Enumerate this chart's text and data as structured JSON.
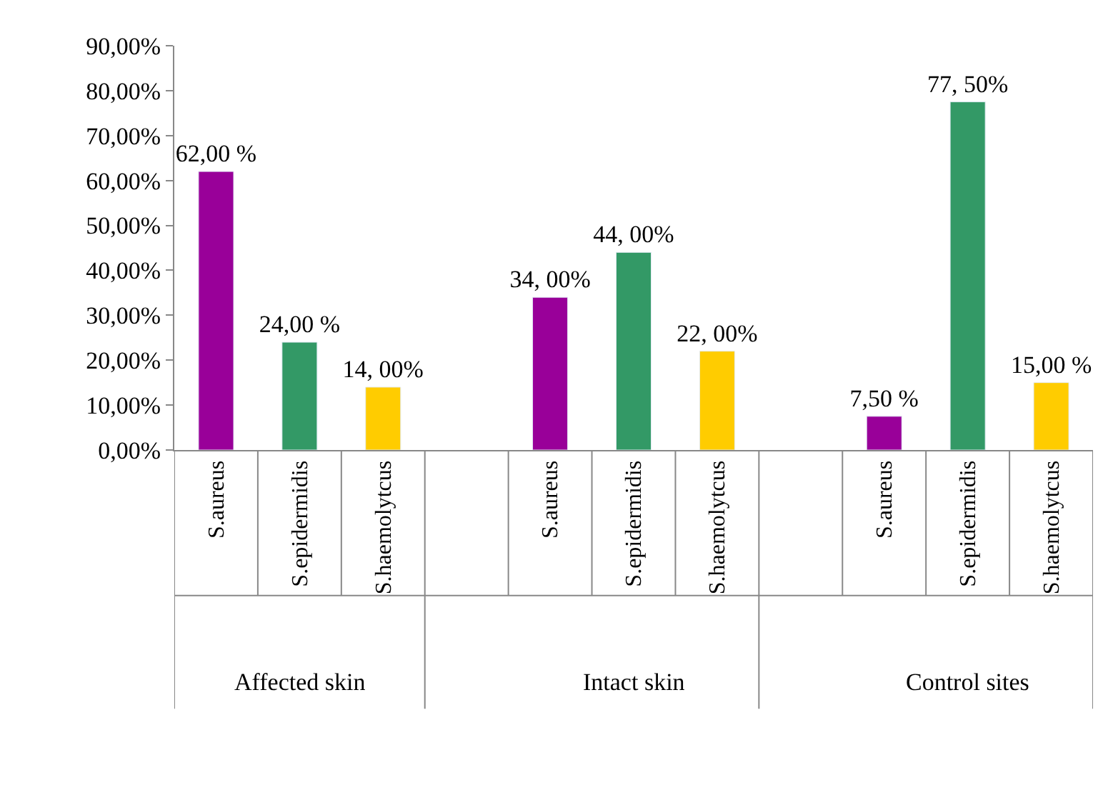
{
  "chart_data": {
    "type": "bar",
    "categories": [
      "S.aureus",
      "S.epidermidis",
      "S.haemolytcus",
      null,
      "S.aureus",
      "S.epidermidis",
      "S.haemolytcus",
      null,
      "S.aureus",
      "S.epidermidis",
      "S.haemolytcus"
    ],
    "values": [
      62,
      24,
      14,
      null,
      34,
      44,
      22,
      null,
      7.5,
      77.5,
      15
    ],
    "colors": [
      "#990099",
      "#339966",
      "#ffcc00",
      null,
      "#990099",
      "#339966",
      "#ffcc00",
      null,
      "#990099",
      "#339966",
      "#ffcc00"
    ],
    "value_labels": [
      "62,00 %",
      "24,00 %",
      "14, 00%",
      null,
      "34, 00%",
      "44, 00%",
      "22, 00%",
      null,
      "7,50 %",
      "77, 50%",
      "15,00 %"
    ],
    "annotations": [
      "Affected skin",
      "Intact skin",
      "Control sites"
    ],
    "ylim": [
      0,
      90
    ],
    "yticks": [
      {
        "value": 0,
        "label": "0,00%"
      },
      {
        "value": 10,
        "label": "10,00%"
      },
      {
        "value": 20,
        "label": "20,00%"
      },
      {
        "value": 30,
        "label": "30,00%"
      },
      {
        "value": 40,
        "label": "40,00%"
      },
      {
        "value": 50,
        "label": "50,00%"
      },
      {
        "value": 60,
        "label": "60,00%"
      },
      {
        "value": 70,
        "label": "70,00%"
      },
      {
        "value": 80,
        "label": "80,00%"
      },
      {
        "value": 90,
        "label": "90,00%"
      }
    ],
    "legend": false
  }
}
